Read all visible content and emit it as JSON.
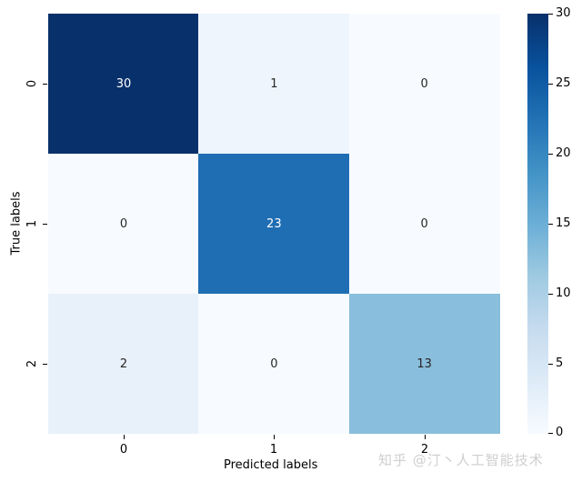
{
  "chart_data": {
    "type": "heatmap",
    "title": "",
    "xlabel": "Predicted labels",
    "ylabel": "True labels",
    "x_categories": [
      "0",
      "1",
      "2"
    ],
    "y_categories": [
      "0",
      "1",
      "2"
    ],
    "matrix": [
      [
        30,
        1,
        0
      ],
      [
        0,
        23,
        0
      ],
      [
        2,
        0,
        13
      ]
    ],
    "colormap": "Blues",
    "vmin": 0,
    "vmax": 30,
    "colorbar_ticks": [
      "0",
      "5",
      "10",
      "15",
      "20",
      "25",
      "30"
    ],
    "annotations": true
  },
  "cells": [
    {
      "text": "30",
      "bg": "#08306b",
      "fg": "#ffffff"
    },
    {
      "text": "1",
      "bg": "#eef5fc",
      "fg": "#262626"
    },
    {
      "text": "0",
      "bg": "#f7fbff",
      "fg": "#262626"
    },
    {
      "text": "0",
      "bg": "#f7fbff",
      "fg": "#262626"
    },
    {
      "text": "23",
      "bg": "#1f6eb3",
      "fg": "#ffffff"
    },
    {
      "text": "0",
      "bg": "#f7fbff",
      "fg": "#262626"
    },
    {
      "text": "2",
      "bg": "#e8f1fa",
      "fg": "#262626"
    },
    {
      "text": "0",
      "bg": "#f7fbff",
      "fg": "#262626"
    },
    {
      "text": "13",
      "bg": "#89bedc",
      "fg": "#262626"
    }
  ],
  "axes": {
    "xlabel": "Predicted labels",
    "ylabel": "True labels",
    "xticks": [
      "0",
      "1",
      "2"
    ],
    "yticks": [
      "0",
      "1",
      "2"
    ]
  },
  "colorbar": {
    "ticks": [
      "30",
      "25",
      "20",
      "15",
      "10",
      "5",
      "0"
    ]
  },
  "watermark": "知乎 @汀丶人工智能技术"
}
